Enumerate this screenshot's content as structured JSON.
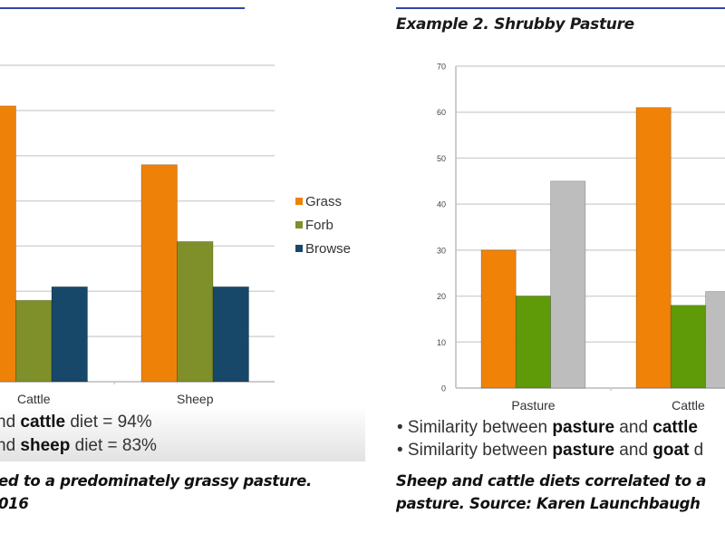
{
  "left": {
    "bullets": [
      {
        "prefix": "nd ",
        "bold": "cattle",
        "suffix": " diet = 94%"
      },
      {
        "prefix": "nd ",
        "bold": "sheep",
        "suffix": " diet = 83%"
      }
    ],
    "caption_lines": [
      "ed to a predominately grassy pasture.",
      "016"
    ]
  },
  "right": {
    "heading": "Example 2. Shrubby Pasture",
    "bullets": [
      {
        "prefix": "• Similarity between ",
        "bold1": "pasture",
        "mid": " and ",
        "bold2": "cattle",
        "suffix": ""
      },
      {
        "prefix": "• Similarity between ",
        "bold1": "pasture",
        "mid": " and ",
        "bold2": "goat",
        "suffix": " d"
      }
    ],
    "caption_lines": [
      "Sheep and cattle diets correlated to a",
      "pasture. Source: Karen Launchbaugh"
    ]
  },
  "chart_data": [
    {
      "type": "bar",
      "title": "",
      "categories": [
        "Cattle",
        "Sheep"
      ],
      "series": [
        {
          "name": "Grass",
          "color": "#ee8208",
          "values": [
            61,
            48
          ]
        },
        {
          "name": "Forb",
          "color": "#7f8f2a",
          "values": [
            18,
            31
          ]
        },
        {
          "name": "Browse",
          "color": "#17486a",
          "values": [
            21,
            21
          ]
        }
      ],
      "xlabel": "",
      "ylabel": "",
      "ylim": [
        0,
        70
      ],
      "yticks_visible": false,
      "grid": true,
      "legend": "right"
    },
    {
      "type": "bar",
      "title": "Example 2. Shrubby Pasture",
      "categories": [
        "Pasture",
        "Cattle"
      ],
      "series": [
        {
          "name": "Grass",
          "color": "#f08208",
          "values": [
            30,
            61
          ]
        },
        {
          "name": "Forb",
          "color": "#5f9a08",
          "values": [
            20,
            18
          ]
        },
        {
          "name": "Browse",
          "color": "#bdbdbd",
          "values": [
            45,
            21
          ]
        }
      ],
      "xlabel": "",
      "ylabel": "",
      "ylim": [
        0,
        70
      ],
      "yticks": [
        0,
        10,
        20,
        30,
        40,
        50,
        60,
        70
      ],
      "grid": true,
      "legend": "none"
    }
  ]
}
